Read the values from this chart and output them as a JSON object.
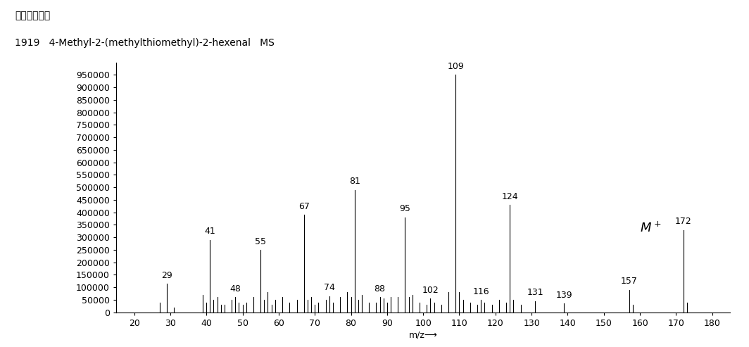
{
  "title_line1": "アバンダンス",
  "title_line2": "1919   4-Methyl-2-(methylthiomethyl)-2-hexenal   MS",
  "xlabel": "m/z⟶",
  "xlim": [
    15,
    185
  ],
  "ylim": [
    0,
    1000000
  ],
  "xticks": [
    20,
    30,
    40,
    50,
    60,
    70,
    80,
    90,
    100,
    110,
    120,
    130,
    140,
    150,
    160,
    170,
    180
  ],
  "yticks": [
    0,
    50000,
    100000,
    150000,
    200000,
    250000,
    300000,
    350000,
    400000,
    450000,
    500000,
    550000,
    600000,
    650000,
    700000,
    750000,
    800000,
    850000,
    900000,
    950000
  ],
  "peaks": [
    {
      "mz": 27,
      "intensity": 40000,
      "label": null
    },
    {
      "mz": 29,
      "intensity": 115000,
      "label": "29"
    },
    {
      "mz": 31,
      "intensity": 20000,
      "label": null
    },
    {
      "mz": 39,
      "intensity": 70000,
      "label": null
    },
    {
      "mz": 40,
      "intensity": 40000,
      "label": null
    },
    {
      "mz": 41,
      "intensity": 290000,
      "label": "41"
    },
    {
      "mz": 42,
      "intensity": 50000,
      "label": null
    },
    {
      "mz": 43,
      "intensity": 60000,
      "label": null
    },
    {
      "mz": 44,
      "intensity": 30000,
      "label": null
    },
    {
      "mz": 45,
      "intensity": 30000,
      "label": null
    },
    {
      "mz": 47,
      "intensity": 50000,
      "label": null
    },
    {
      "mz": 48,
      "intensity": 60000,
      "label": "48"
    },
    {
      "mz": 49,
      "intensity": 40000,
      "label": null
    },
    {
      "mz": 50,
      "intensity": 30000,
      "label": null
    },
    {
      "mz": 51,
      "intensity": 40000,
      "label": null
    },
    {
      "mz": 53,
      "intensity": 60000,
      "label": null
    },
    {
      "mz": 55,
      "intensity": 250000,
      "label": "55"
    },
    {
      "mz": 56,
      "intensity": 50000,
      "label": null
    },
    {
      "mz": 57,
      "intensity": 80000,
      "label": null
    },
    {
      "mz": 58,
      "intensity": 30000,
      "label": null
    },
    {
      "mz": 59,
      "intensity": 50000,
      "label": null
    },
    {
      "mz": 61,
      "intensity": 60000,
      "label": null
    },
    {
      "mz": 63,
      "intensity": 40000,
      "label": null
    },
    {
      "mz": 65,
      "intensity": 50000,
      "label": null
    },
    {
      "mz": 67,
      "intensity": 390000,
      "label": "67"
    },
    {
      "mz": 68,
      "intensity": 50000,
      "label": null
    },
    {
      "mz": 69,
      "intensity": 60000,
      "label": null
    },
    {
      "mz": 70,
      "intensity": 30000,
      "label": null
    },
    {
      "mz": 71,
      "intensity": 40000,
      "label": null
    },
    {
      "mz": 73,
      "intensity": 50000,
      "label": null
    },
    {
      "mz": 74,
      "intensity": 65000,
      "label": "74"
    },
    {
      "mz": 75,
      "intensity": 40000,
      "label": null
    },
    {
      "mz": 77,
      "intensity": 60000,
      "label": null
    },
    {
      "mz": 79,
      "intensity": 80000,
      "label": null
    },
    {
      "mz": 80,
      "intensity": 60000,
      "label": null
    },
    {
      "mz": 81,
      "intensity": 490000,
      "label": "81"
    },
    {
      "mz": 82,
      "intensity": 50000,
      "label": null
    },
    {
      "mz": 83,
      "intensity": 70000,
      "label": null
    },
    {
      "mz": 85,
      "intensity": 40000,
      "label": null
    },
    {
      "mz": 87,
      "intensity": 40000,
      "label": null
    },
    {
      "mz": 88,
      "intensity": 60000,
      "label": "88"
    },
    {
      "mz": 89,
      "intensity": 55000,
      "label": null
    },
    {
      "mz": 90,
      "intensity": 40000,
      "label": null
    },
    {
      "mz": 91,
      "intensity": 60000,
      "label": null
    },
    {
      "mz": 93,
      "intensity": 60000,
      "label": null
    },
    {
      "mz": 95,
      "intensity": 380000,
      "label": "95"
    },
    {
      "mz": 96,
      "intensity": 60000,
      "label": null
    },
    {
      "mz": 97,
      "intensity": 70000,
      "label": null
    },
    {
      "mz": 99,
      "intensity": 40000,
      "label": null
    },
    {
      "mz": 101,
      "intensity": 30000,
      "label": null
    },
    {
      "mz": 102,
      "intensity": 55000,
      "label": "102"
    },
    {
      "mz": 103,
      "intensity": 40000,
      "label": null
    },
    {
      "mz": 105,
      "intensity": 30000,
      "label": null
    },
    {
      "mz": 107,
      "intensity": 80000,
      "label": null
    },
    {
      "mz": 109,
      "intensity": 950000,
      "label": "109"
    },
    {
      "mz": 110,
      "intensity": 80000,
      "label": null
    },
    {
      "mz": 111,
      "intensity": 50000,
      "label": null
    },
    {
      "mz": 113,
      "intensity": 40000,
      "label": null
    },
    {
      "mz": 115,
      "intensity": 30000,
      "label": null
    },
    {
      "mz": 116,
      "intensity": 50000,
      "label": "116"
    },
    {
      "mz": 117,
      "intensity": 40000,
      "label": null
    },
    {
      "mz": 119,
      "intensity": 30000,
      "label": null
    },
    {
      "mz": 121,
      "intensity": 50000,
      "label": null
    },
    {
      "mz": 123,
      "intensity": 40000,
      "label": null
    },
    {
      "mz": 124,
      "intensity": 430000,
      "label": "124"
    },
    {
      "mz": 125,
      "intensity": 50000,
      "label": null
    },
    {
      "mz": 127,
      "intensity": 30000,
      "label": null
    },
    {
      "mz": 131,
      "intensity": 45000,
      "label": "131"
    },
    {
      "mz": 139,
      "intensity": 35000,
      "label": "139"
    },
    {
      "mz": 157,
      "intensity": 90000,
      "label": "157"
    },
    {
      "mz": 158,
      "intensity": 30000,
      "label": null
    },
    {
      "mz": 172,
      "intensity": 330000,
      "label": "172"
    },
    {
      "mz": 173,
      "intensity": 40000,
      "label": null
    }
  ],
  "mplus_x": 163,
  "mplus_y": 310000,
  "background_color": "#ffffff",
  "line_color": "#000000",
  "title_fontsize": 10,
  "tick_fontsize": 9,
  "label_fontsize": 9
}
